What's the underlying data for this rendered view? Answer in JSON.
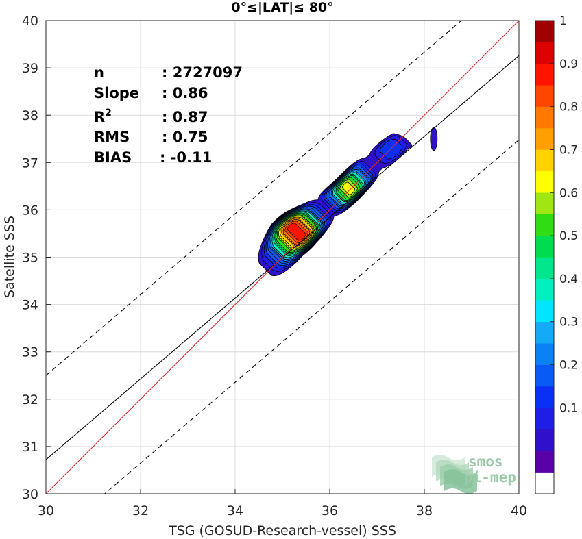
{
  "chart_data": {
    "type": "heatmap",
    "subtype": "density-contour",
    "title": "0°≤|LAT|≤ 80°",
    "xlabel": "TSG (GOSUD-Research-vessel) SSS",
    "ylabel": "Satellite SSS",
    "xlim": [
      30,
      40
    ],
    "ylim": [
      30,
      40
    ],
    "xticks": [
      "30",
      "32",
      "34",
      "36",
      "38",
      "40"
    ],
    "yticks": [
      "30",
      "31",
      "32",
      "33",
      "34",
      "35",
      "36",
      "37",
      "38",
      "39",
      "40"
    ],
    "grid": true,
    "stats": [
      {
        "label": "n",
        "sep": ": ",
        "value": "2727097"
      },
      {
        "label": "Slope",
        "sep": ": ",
        "value": "0.86"
      },
      {
        "label": "R",
        "sup": "2",
        "sep": ": ",
        "value": "0.87"
      },
      {
        "label": "RMS",
        "sep": ": ",
        "value": "0.75"
      },
      {
        "label": "BIAS",
        "sep": ": ",
        "value": "-0.11"
      }
    ],
    "lines": {
      "identity": {
        "color": "#e8262a",
        "x": [
          30,
          40
        ],
        "y": [
          30,
          40
        ]
      },
      "fit": {
        "color": "#000000",
        "x": [
          30,
          40
        ],
        "y": [
          30.72,
          39.26
        ]
      },
      "fit_plus": {
        "style": "dashed",
        "color": "#000000",
        "x": [
          30,
          40
        ],
        "y": [
          32.5,
          41.04
        ]
      },
      "fit_minus": {
        "style": "dashed",
        "color": "#000000",
        "x": [
          30,
          40
        ],
        "y": [
          28.94,
          37.48
        ]
      }
    },
    "density": {
      "ridge_x": [
        34.5,
        34.8,
        35.1,
        35.4,
        35.7,
        36.0,
        36.3,
        36.6,
        36.9,
        37.2,
        37.5
      ],
      "ridge_y": [
        34.55,
        34.95,
        35.35,
        35.62,
        35.85,
        36.1,
        36.35,
        36.65,
        36.95,
        37.2,
        37.45
      ],
      "peaks": [
        {
          "x": 35.3,
          "y": 35.5,
          "value": 0.97
        },
        {
          "x": 36.4,
          "y": 36.4,
          "value": 0.68
        },
        {
          "x": 37.3,
          "y": 37.25,
          "value": 0.2
        }
      ],
      "outlier_blob": {
        "x": 38.2,
        "y": 37.5,
        "value": 0.08
      }
    },
    "colorbar": {
      "min": 0,
      "max": 1,
      "ticks": [
        "0.1",
        "0.2",
        "0.3",
        "0.4",
        "0.5",
        "0.6",
        "0.7",
        "0.8",
        "0.9",
        "1"
      ],
      "levels": [
        0.05,
        0.1,
        0.15,
        0.2,
        0.25,
        0.3,
        0.35,
        0.4,
        0.45,
        0.5,
        0.55,
        0.6,
        0.65,
        0.7,
        0.75,
        0.8,
        0.85,
        0.9,
        0.95,
        1.0
      ],
      "colors": [
        "#ffffff",
        "#5a00a8",
        "#3010c8",
        "#1e1ee6",
        "#0a30f5",
        "#0a5af5",
        "#0a82f5",
        "#14aaf5",
        "#00e6ff",
        "#00f0c0",
        "#00e68c",
        "#00dc50",
        "#32dc14",
        "#a0e614",
        "#ffff00",
        "#ffd200",
        "#ffa000",
        "#ff7800",
        "#ff4600",
        "#ff1400",
        "#dc0000",
        "#a00000"
      ]
    },
    "logo": {
      "line1": "smos",
      "line2": "pi-mep"
    }
  }
}
